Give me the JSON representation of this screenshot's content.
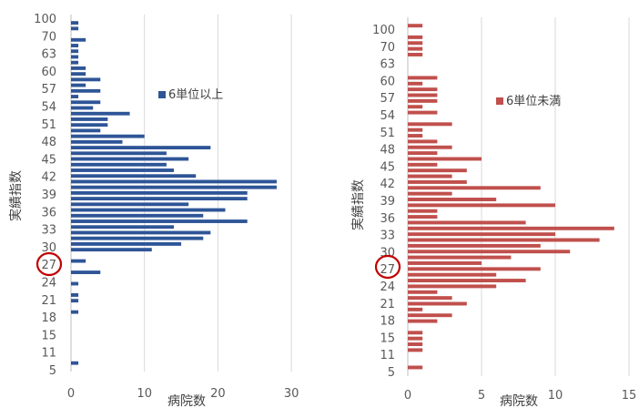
{
  "chart_data": [
    {
      "type": "bar",
      "orientation": "horizontal",
      "legend_position": "upper-right",
      "series": [
        {
          "name": "6単位以上",
          "color": "#2E5597",
          "categories_key": "left"
        }
      ],
      "ylabel": "実績指数",
      "xlabel": "病院数",
      "xlim": [
        0,
        30
      ],
      "xticks": [
        0,
        10,
        20,
        30
      ],
      "y_tick_labels": [
        "100",
        "70",
        "63",
        "60",
        "57",
        "54",
        "51",
        "48",
        "45",
        "42",
        "39",
        "36",
        "33",
        "30",
        "27",
        "24",
        "21",
        "18",
        "15",
        "11",
        "5"
      ],
      "highlight": {
        "label": "27",
        "color": "#C00000"
      },
      "categories": [
        "100",
        "70",
        "64",
        "63",
        "62",
        "61",
        "60",
        "59",
        "58",
        "57",
        "56",
        "55",
        "54",
        "53",
        "52",
        "51",
        "50",
        "49",
        "48",
        "47",
        "46",
        "45",
        "44",
        "43",
        "42",
        "41",
        "40",
        "39",
        "38",
        "37",
        "36",
        "35",
        "34",
        "33",
        "32",
        "31",
        "30",
        "29",
        "28",
        "27",
        "26",
        "25",
        "24",
        "23",
        "22",
        "21",
        "20",
        "19",
        "18",
        "17",
        "16",
        "15",
        "14",
        "13",
        "12",
        "11",
        "10",
        "9",
        "8",
        "7",
        "6",
        "5"
      ],
      "values": [
        1,
        1,
        0,
        2,
        1,
        1,
        1,
        1,
        2,
        2,
        4,
        2,
        4,
        1,
        4,
        3,
        8,
        5,
        5,
        4,
        10,
        7,
        19,
        13,
        16,
        13,
        14,
        17,
        28,
        28,
        24,
        24,
        16,
        21,
        18,
        24,
        14,
        19,
        18,
        15,
        11,
        0,
        2,
        0,
        4,
        0,
        1,
        0,
        1,
        1,
        0,
        1,
        0,
        0,
        0,
        0,
        0,
        0,
        0,
        0,
        1,
        0
      ]
    },
    {
      "type": "bar",
      "orientation": "horizontal",
      "legend_position": "upper-right",
      "series": [
        {
          "name": "6単位未満",
          "color": "#C0504D"
        }
      ],
      "ylabel": "実績指数",
      "xlabel": "病院数",
      "xlim": [
        0,
        15
      ],
      "xticks": [
        0,
        5,
        10,
        15
      ],
      "y_tick_labels": [
        "100",
        "70",
        "63",
        "60",
        "57",
        "54",
        "51",
        "48",
        "45",
        "42",
        "39",
        "36",
        "33",
        "30",
        "27",
        "24",
        "21",
        "18",
        "15",
        "11",
        "5"
      ],
      "highlight": {
        "label": "27",
        "color": "#C00000"
      },
      "categories": [
        "100",
        "90",
        "70",
        "67",
        "63",
        "61",
        "60",
        "58",
        "57",
        "56",
        "55",
        "54",
        "53",
        "52",
        "51",
        "50",
        "49",
        "48",
        "47",
        "46",
        "45",
        "44",
        "43",
        "42",
        "41",
        "40",
        "39",
        "38",
        "37",
        "36",
        "35",
        "34",
        "33",
        "32",
        "31",
        "30",
        "29",
        "28",
        "27",
        "26",
        "25",
        "24",
        "23",
        "22",
        "21",
        "20",
        "19",
        "18",
        "17",
        "16",
        "15",
        "14",
        "13",
        "12",
        "11",
        "10",
        "9",
        "8",
        "7",
        "6",
        "5"
      ],
      "values": [
        1,
        0,
        1,
        1,
        1,
        1,
        0,
        0,
        0,
        2,
        1,
        2,
        2,
        2,
        1,
        2,
        0,
        3,
        1,
        1,
        2,
        3,
        2,
        5,
        2,
        4,
        3,
        4,
        9,
        3,
        6,
        10,
        2,
        2,
        8,
        14,
        10,
        13,
        9,
        11,
        7,
        5,
        9,
        6,
        8,
        6,
        2,
        3,
        4,
        1,
        3,
        2,
        0,
        1,
        1,
        1,
        1,
        0,
        0,
        1,
        0
      ]
    }
  ]
}
